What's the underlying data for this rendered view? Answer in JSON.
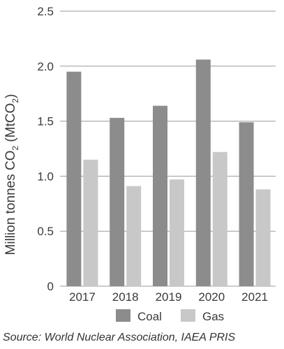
{
  "chart_data": {
    "type": "bar",
    "categories": [
      "2017",
      "2018",
      "2019",
      "2020",
      "2021"
    ],
    "series": [
      {
        "name": "Coal",
        "values": [
          1.95,
          1.53,
          1.64,
          2.06,
          1.49
        ],
        "color": "#8c8c8c"
      },
      {
        "name": "Gas",
        "values": [
          1.15,
          0.91,
          0.97,
          1.22,
          0.88
        ],
        "color": "#c8c8c8"
      }
    ],
    "ylabel_main": "Million tonnes CO",
    "ylabel_sub": "2",
    "ylabel_paren": " (MtCO",
    "ylabel_paren_sub": "2",
    "ylabel_close": ")",
    "ylim": [
      0,
      2.5
    ],
    "yticks": [
      "0",
      "0.5",
      "1.0",
      "1.5",
      "2.0",
      "2.5"
    ],
    "grid": true,
    "legend_position": "bottom"
  },
  "source_text": "Source: World Nuclear Association, IAEA PRIS"
}
